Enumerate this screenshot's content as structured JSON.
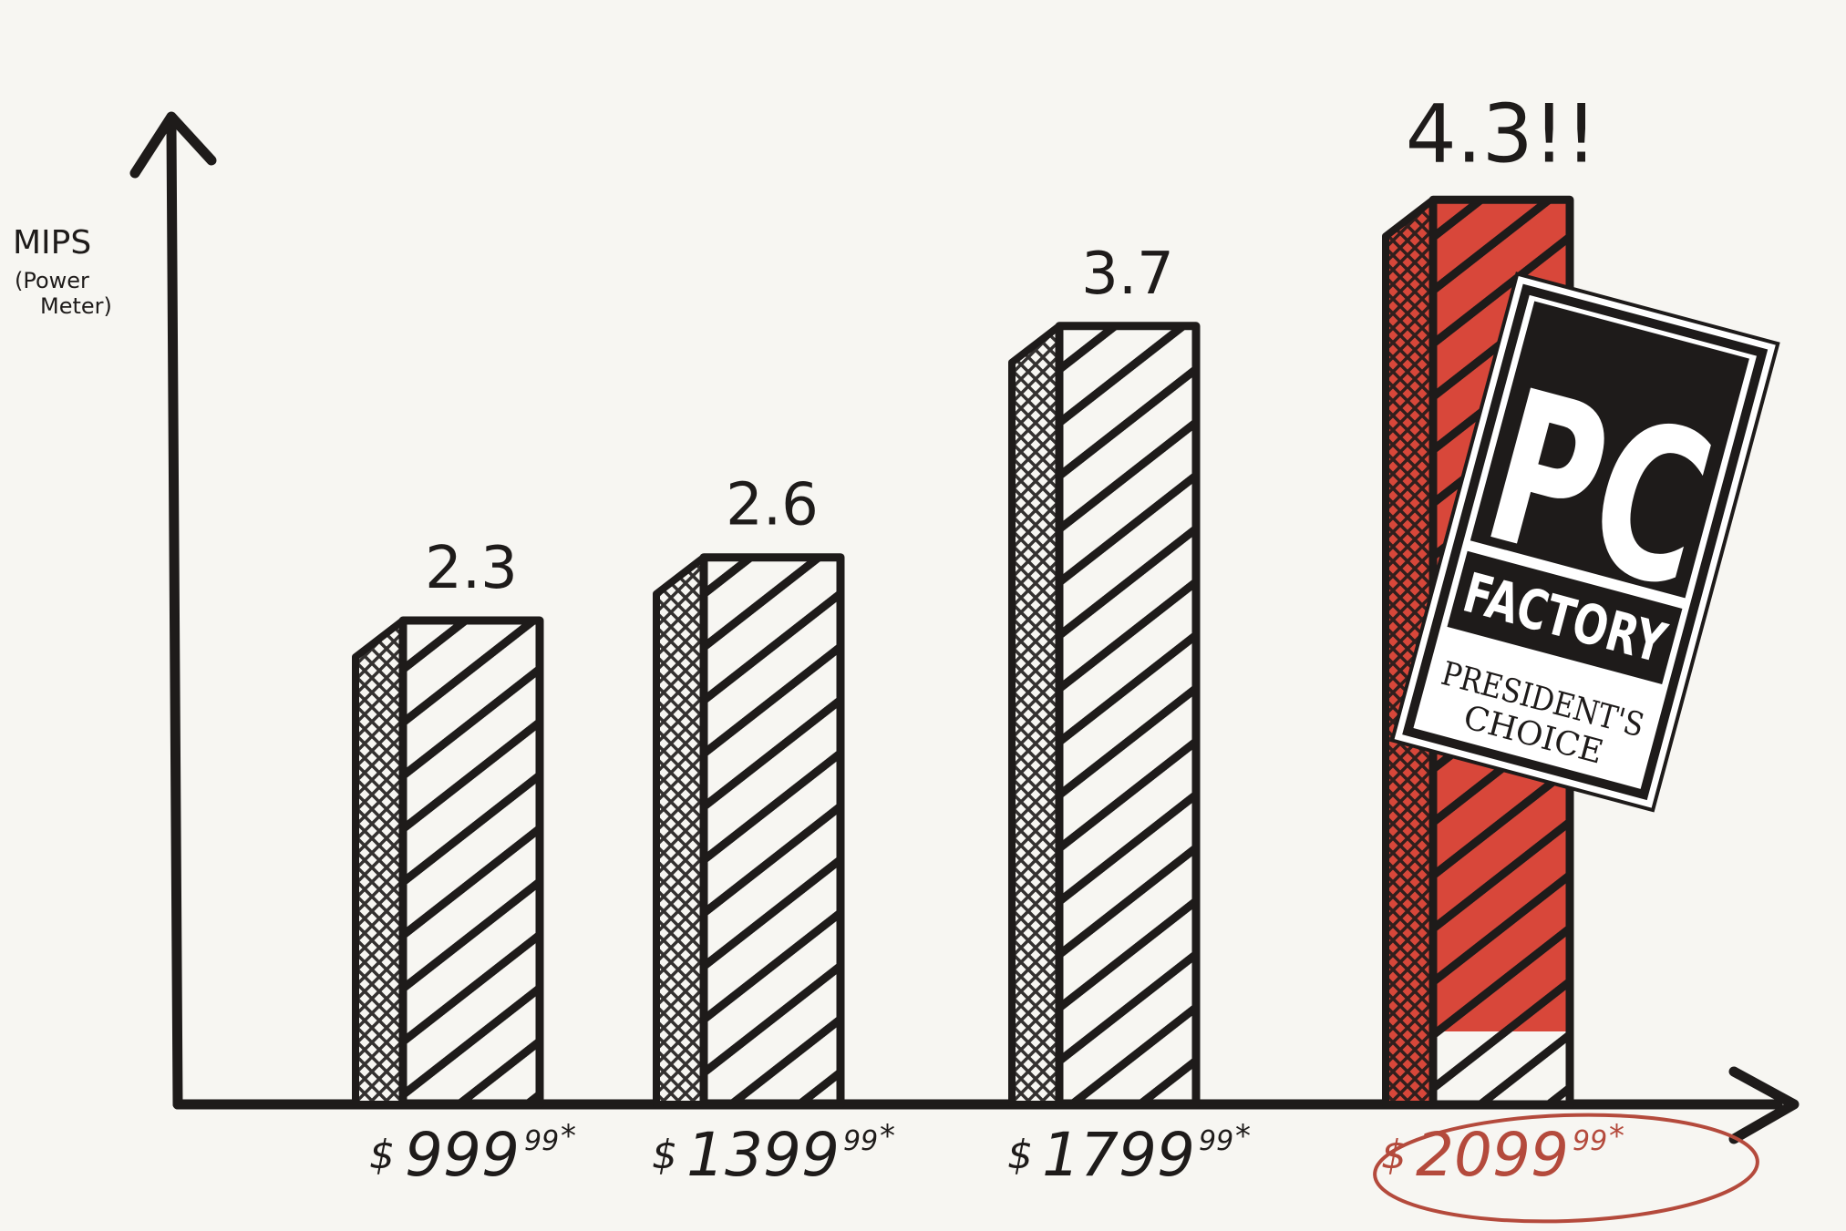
{
  "chart_data": {
    "type": "bar",
    "title": "",
    "xlabel": "",
    "ylabel": "MIPS",
    "ylabel_sub_1": "(Power",
    "ylabel_sub_2": "Meter)",
    "categories": [
      "$999.99*",
      "$1399.99*",
      "$1799.99*",
      "$2099.99*"
    ],
    "category_labels": [
      {
        "dollar": "$",
        "main": "999",
        "cents": "99",
        "star": "*"
      },
      {
        "dollar": "$",
        "main": "1399",
        "cents": "99",
        "star": "*"
      },
      {
        "dollar": "$",
        "main": "1799",
        "cents": "99",
        "star": "*"
      },
      {
        "dollar": "$",
        "main": "2099",
        "cents": "99",
        "star": "*"
      }
    ],
    "values": [
      2.3,
      2.6,
      3.7,
      4.3
    ],
    "value_labels": [
      "2.3",
      "2.6",
      "3.7",
      "4.3!!"
    ],
    "highlighted_index": 3,
    "ylim": [
      0,
      4.6
    ],
    "grid": false,
    "legend": "none"
  },
  "badge": {
    "brand_top": "PC",
    "brand_bottom": "FACTORY",
    "award_line_1": "PRESIDENT'S",
    "award_line_2": "CHOICE"
  },
  "colors": {
    "ink": "#1e1b1a",
    "paper": "#f7f6f2",
    "highlight": "#d8473a",
    "circle": "#b44a3c"
  }
}
